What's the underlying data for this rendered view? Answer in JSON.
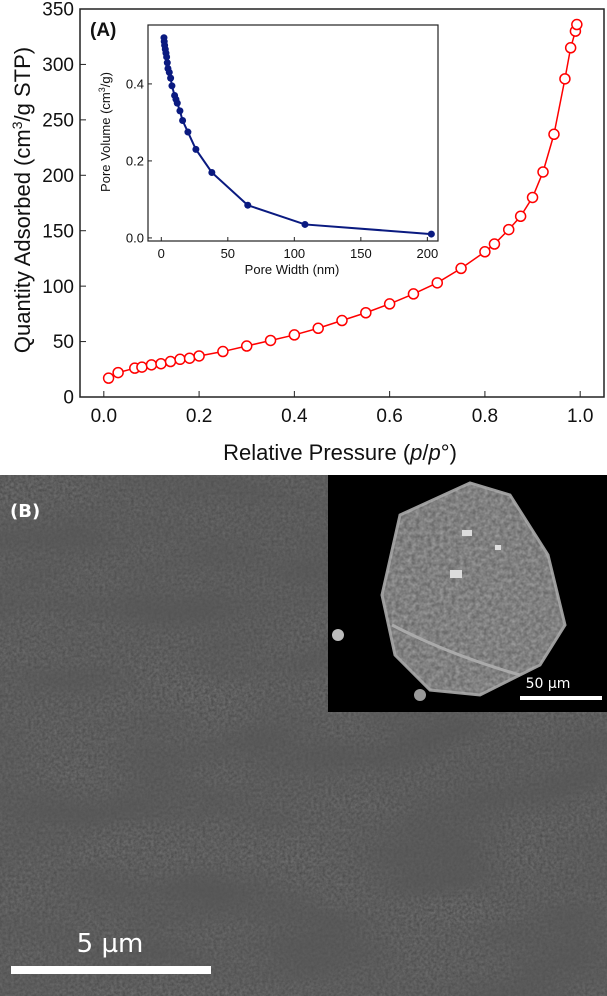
{
  "chart_data": [
    {
      "type": "line",
      "panel_label": "(A)",
      "xlabel_main": "Relative Pressure (",
      "xlabel_italic1": "p",
      "xlabel_sep": "/",
      "xlabel_italic2": "p",
      "xlabel_tail": "°)",
      "ylabel_pre": "Quantity Adsorbed (cm",
      "ylabel_sup": "3",
      "ylabel_post": "/g STP)",
      "xlim": [
        -0.05,
        1.05
      ],
      "ylim": [
        0,
        350
      ],
      "xticks": [
        "0.0",
        "0.2",
        "0.4",
        "0.6",
        "0.8",
        "1.0"
      ],
      "yticks": [
        "0",
        "50",
        "100",
        "150",
        "200",
        "250",
        "300",
        "350"
      ],
      "grid": false,
      "series": [
        {
          "color": "#ff0000",
          "marker": "open-circle",
          "x": [
            0.01,
            0.03,
            0.065,
            0.08,
            0.1,
            0.12,
            0.14,
            0.16,
            0.18,
            0.2,
            0.25,
            0.3,
            0.35,
            0.4,
            0.45,
            0.5,
            0.55,
            0.6,
            0.65,
            0.7,
            0.75,
            0.8,
            0.82,
            0.85,
            0.875,
            0.9,
            0.922,
            0.945,
            0.968,
            0.98,
            0.99,
            0.993
          ],
          "y": [
            17,
            22,
            26,
            27,
            29,
            30,
            32,
            34,
            35,
            37,
            41,
            46,
            51,
            56,
            62,
            69,
            76,
            84,
            93,
            103,
            116,
            131,
            138,
            151,
            163,
            180,
            203,
            237,
            287,
            315,
            330,
            336
          ]
        }
      ]
    },
    {
      "type": "line",
      "inset": true,
      "xlabel": "Pore Width (nm)",
      "ylabel_pre": "Pore Volume (cm",
      "ylabel_sup": "3",
      "ylabel_post": "/g)",
      "xlim": [
        -10,
        208
      ],
      "ylim": [
        -0.008,
        0.553
      ],
      "xticks": [
        "0",
        "50",
        "100",
        "150",
        "200"
      ],
      "yticks": [
        "0.0",
        "0.2",
        "0.4"
      ],
      "grid": false,
      "series": [
        {
          "color": "#0a1a80",
          "marker": "filled-circle",
          "x": [
            2,
            2.2,
            2.5,
            3,
            3.5,
            4,
            4.5,
            5,
            6,
            7,
            8,
            10,
            11,
            12,
            14,
            16,
            20,
            26,
            38,
            65,
            108,
            203
          ],
          "y": [
            0.52,
            0.51,
            0.5,
            0.49,
            0.48,
            0.47,
            0.455,
            0.44,
            0.43,
            0.415,
            0.395,
            0.37,
            0.36,
            0.35,
            0.33,
            0.305,
            0.275,
            0.23,
            0.17,
            0.085,
            0.035,
            0.01
          ]
        }
      ]
    }
  ],
  "micrograph": {
    "panel_label": "(B)",
    "scale_bar_main": "5 µm",
    "scale_bar_inset": "50 µm"
  }
}
